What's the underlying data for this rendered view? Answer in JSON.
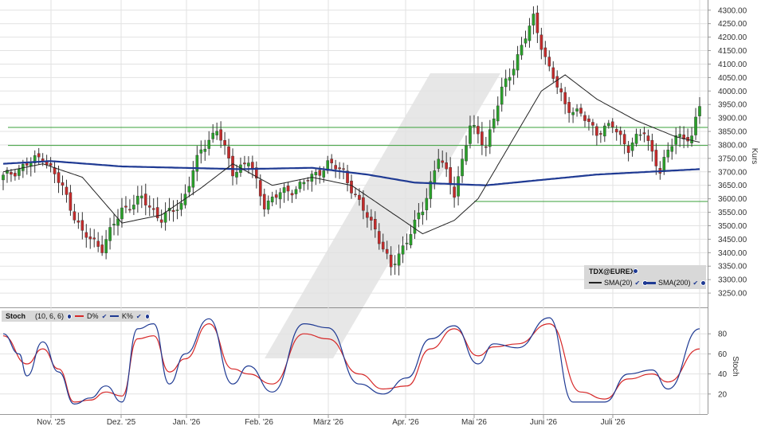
{
  "chart_data": [
    {
      "type": "candlestick",
      "instrument": "TDX@EUREX",
      "ylabel": "Kurs",
      "ylim": [
        3200,
        4320
      ],
      "y_ticks": [
        "4300.00",
        "4250.00",
        "4200.00",
        "4150.00",
        "4100.00",
        "4050.00",
        "4000.00",
        "3950.00",
        "3900.00",
        "3850.00",
        "3800.00",
        "3750.00",
        "3700.00",
        "3650.00",
        "3600.00",
        "3550.00",
        "3500.00",
        "3450.00",
        "3400.00",
        "3350.00",
        "3300.00",
        "3250.00"
      ],
      "x_ticks": [
        "Nov. '25",
        "Dez. '25",
        "Jan. '26",
        "Feb. '26",
        "März '26",
        "Apr. '26",
        "Mai '26",
        "Juni '26",
        "Juli '26"
      ],
      "grid": true,
      "legend_position": "bottom-right",
      "colors": {
        "up": "#2aa02a",
        "down": "#c42b2b",
        "sma20": "#222222",
        "sma200": "#1f3a93",
        "support": "#3aa03a"
      },
      "series": [
        {
          "name": "SMA(20)",
          "kind": "line"
        },
        {
          "name": "SMA(200)",
          "kind": "line"
        }
      ],
      "horizontal_lines": [
        3865,
        3798,
        3590
      ],
      "close_anchors": [
        [
          0,
          3680
        ],
        [
          5,
          3720
        ],
        [
          10,
          3760
        ],
        [
          15,
          3640
        ],
        [
          20,
          3470
        ],
        [
          25,
          3420
        ],
        [
          30,
          3560
        ],
        [
          35,
          3600
        ],
        [
          40,
          3525
        ],
        [
          45,
          3580
        ],
        [
          50,
          3780
        ],
        [
          54,
          3860
        ],
        [
          58,
          3700
        ],
        [
          62,
          3740
        ],
        [
          66,
          3580
        ],
        [
          70,
          3620
        ],
        [
          74,
          3640
        ],
        [
          78,
          3680
        ],
        [
          82,
          3730
        ],
        [
          86,
          3700
        ],
        [
          90,
          3580
        ],
        [
          94,
          3490
        ],
        [
          98,
          3340
        ],
        [
          102,
          3450
        ],
        [
          106,
          3560
        ],
        [
          110,
          3760
        ],
        [
          114,
          3620
        ],
        [
          118,
          3870
        ],
        [
          122,
          3800
        ],
        [
          126,
          4000
        ],
        [
          130,
          4130
        ],
        [
          134,
          4270
        ],
        [
          138,
          4080
        ],
        [
          142,
          3950
        ],
        [
          146,
          3910
        ],
        [
          150,
          3850
        ],
        [
          154,
          3870
        ],
        [
          158,
          3790
        ],
        [
          162,
          3850
        ],
        [
          166,
          3700
        ],
        [
          170,
          3840
        ],
        [
          174,
          3820
        ],
        [
          176,
          3950
        ]
      ],
      "sma20_anchors": [
        [
          0,
          3700
        ],
        [
          10,
          3730
        ],
        [
          20,
          3680
        ],
        [
          30,
          3510
        ],
        [
          40,
          3540
        ],
        [
          50,
          3640
        ],
        [
          58,
          3730
        ],
        [
          68,
          3650
        ],
        [
          78,
          3680
        ],
        [
          88,
          3650
        ],
        [
          98,
          3550
        ],
        [
          106,
          3470
        ],
        [
          114,
          3520
        ],
        [
          120,
          3600
        ],
        [
          128,
          3800
        ],
        [
          136,
          4000
        ],
        [
          142,
          4060
        ],
        [
          150,
          3970
        ],
        [
          160,
          3890
        ],
        [
          170,
          3830
        ],
        [
          176,
          3810
        ]
      ],
      "sma200_anchors": [
        [
          0,
          3730
        ],
        [
          12,
          3740
        ],
        [
          30,
          3720
        ],
        [
          60,
          3710
        ],
        [
          78,
          3715
        ],
        [
          92,
          3690
        ],
        [
          104,
          3660
        ],
        [
          122,
          3650
        ],
        [
          136,
          3670
        ],
        [
          150,
          3690
        ],
        [
          176,
          3710
        ]
      ]
    },
    {
      "type": "line",
      "title": "Stoch",
      "params": "(10, 6, 6)",
      "ylabel": "Stoch",
      "ylim": [
        0,
        100
      ],
      "y_ticks": [
        80,
        60,
        40,
        20
      ],
      "series": [
        {
          "name": "D%",
          "color": "#d62828",
          "anchors": [
            [
              0,
              78
            ],
            [
              6,
              50
            ],
            [
              10,
              65
            ],
            [
              14,
              45
            ],
            [
              18,
              12
            ],
            [
              22,
              14
            ],
            [
              26,
              22
            ],
            [
              30,
              18
            ],
            [
              34,
              75
            ],
            [
              38,
              78
            ],
            [
              42,
              42
            ],
            [
              46,
              55
            ],
            [
              52,
              90
            ],
            [
              58,
              45
            ],
            [
              62,
              40
            ],
            [
              68,
              30
            ],
            [
              76,
              80
            ],
            [
              82,
              75
            ],
            [
              90,
              40
            ],
            [
              96,
              25
            ],
            [
              102,
              28
            ],
            [
              108,
              65
            ],
            [
              114,
              85
            ],
            [
              120,
              58
            ],
            [
              124,
              67
            ],
            [
              130,
              70
            ],
            [
              138,
              90
            ],
            [
              146,
              22
            ],
            [
              152,
              15
            ],
            [
              158,
              35
            ],
            [
              164,
              40
            ],
            [
              168,
              32
            ],
            [
              176,
              65
            ]
          ]
        },
        {
          "name": "K%",
          "color": "#1f3a93",
          "anchors": [
            [
              0,
              80
            ],
            [
              4,
              60
            ],
            [
              6,
              38
            ],
            [
              10,
              72
            ],
            [
              14,
              42
            ],
            [
              18,
              10
            ],
            [
              22,
              16
            ],
            [
              26,
              28
            ],
            [
              30,
              12
            ],
            [
              34,
              85
            ],
            [
              38,
              90
            ],
            [
              42,
              30
            ],
            [
              46,
              60
            ],
            [
              52,
              95
            ],
            [
              58,
              30
            ],
            [
              62,
              48
            ],
            [
              68,
              22
            ],
            [
              76,
              90
            ],
            [
              82,
              86
            ],
            [
              90,
              30
            ],
            [
              96,
              20
            ],
            [
              102,
              36
            ],
            [
              108,
              75
            ],
            [
              114,
              88
            ],
            [
              120,
              50
            ],
            [
              124,
              70
            ],
            [
              130,
              66
            ],
            [
              138,
              96
            ],
            [
              144,
              12
            ],
            [
              152,
              12
            ],
            [
              158,
              40
            ],
            [
              164,
              44
            ],
            [
              168,
              25
            ],
            [
              176,
              85
            ]
          ]
        }
      ]
    }
  ]
}
